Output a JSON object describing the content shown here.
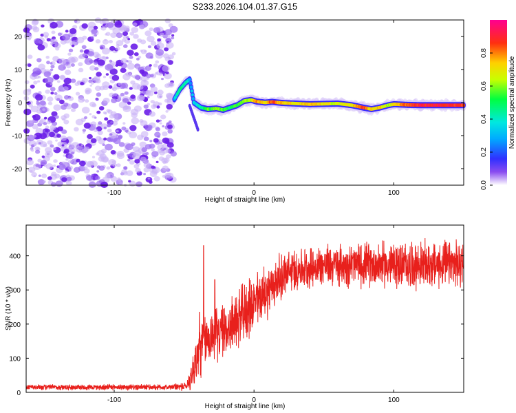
{
  "title": "S233.2026.104.01.37.G15",
  "colors": {
    "trace": "#e8201c",
    "scatter": "#7a3cf0",
    "background": "#ffffff"
  },
  "chart_data": [
    {
      "type": "heatmap",
      "name": "spectrogram",
      "xlabel": "Height of straight line (km)",
      "ylabel": "Frequency (Hz)",
      "xlim": [
        -163,
        150
      ],
      "ylim": [
        -25,
        25
      ],
      "xticks": [
        -100,
        0,
        100
      ],
      "yticks": [
        -20,
        -10,
        0,
        10,
        20
      ],
      "noise_region_x": [
        -163,
        -57
      ],
      "ridge": [
        {
          "x": -57,
          "f": 1,
          "a": 0.3
        },
        {
          "x": -53,
          "f": 4,
          "a": 0.5
        },
        {
          "x": -49,
          "f": 6,
          "a": 0.45
        },
        {
          "x": -46,
          "f": 7,
          "a": 0.3
        },
        {
          "x": -43,
          "f": 0,
          "a": 0.35
        },
        {
          "x": -38,
          "f": -1.5,
          "a": 0.4
        },
        {
          "x": -33,
          "f": -2,
          "a": 0.55
        },
        {
          "x": -27,
          "f": -1.8,
          "a": 0.6
        },
        {
          "x": -22,
          "f": -2.2,
          "a": 0.55
        },
        {
          "x": -17,
          "f": -1.5,
          "a": 0.5
        },
        {
          "x": -12,
          "f": -0.8,
          "a": 0.55
        },
        {
          "x": -7,
          "f": 0.5,
          "a": 0.6
        },
        {
          "x": -2,
          "f": 0.8,
          "a": 0.65
        },
        {
          "x": 2,
          "f": 0.3,
          "a": 0.8
        },
        {
          "x": 8,
          "f": 0,
          "a": 0.7
        },
        {
          "x": 13,
          "f": 0.2,
          "a": 0.85
        },
        {
          "x": 20,
          "f": -0.1,
          "a": 0.75
        },
        {
          "x": 30,
          "f": -0.3,
          "a": 0.7
        },
        {
          "x": 40,
          "f": -0.5,
          "a": 0.75
        },
        {
          "x": 50,
          "f": -0.4,
          "a": 0.7
        },
        {
          "x": 60,
          "f": -0.3,
          "a": 0.65
        },
        {
          "x": 70,
          "f": -0.8,
          "a": 0.7
        },
        {
          "x": 78,
          "f": -1.5,
          "a": 0.85
        },
        {
          "x": 84,
          "f": -2,
          "a": 0.7
        },
        {
          "x": 90,
          "f": -1.5,
          "a": 0.75
        },
        {
          "x": 96,
          "f": -0.8,
          "a": 0.6
        },
        {
          "x": 100,
          "f": -0.5,
          "a": 0.7
        },
        {
          "x": 110,
          "f": -0.7,
          "a": 0.85
        },
        {
          "x": 120,
          "f": -0.8,
          "a": 0.9
        },
        {
          "x": 130,
          "f": -0.8,
          "a": 0.9
        },
        {
          "x": 140,
          "f": -0.8,
          "a": 0.9
        },
        {
          "x": 150,
          "f": -0.8,
          "a": 0.85
        }
      ],
      "colorbar": {
        "label": "Normalized spectral amplitude",
        "range": [
          0,
          1
        ],
        "ticks": [
          "0.0",
          "0.2",
          "0.4",
          "0.6",
          "0.8"
        ],
        "tick_values": [
          0.0,
          0.2,
          0.4,
          0.6,
          0.8
        ]
      }
    },
    {
      "type": "line",
      "name": "snr",
      "xlabel": "Height of straight line (km)",
      "ylabel": "SNR (10 * v/v)",
      "xlim": [
        -163,
        150
      ],
      "ylim": [
        0,
        490
      ],
      "xticks": [
        -100,
        0,
        100
      ],
      "yticks": [
        0,
        100,
        200,
        300,
        400
      ],
      "envelope": [
        {
          "x": -163,
          "mean": 15,
          "noise": 10
        },
        {
          "x": -60,
          "mean": 15,
          "noise": 10
        },
        {
          "x": -48,
          "mean": 18,
          "noise": 15
        },
        {
          "x": -44,
          "mean": 60,
          "noise": 60
        },
        {
          "x": -40,
          "mean": 110,
          "noise": 110
        },
        {
          "x": -36,
          "mean": 150,
          "noise": 90
        },
        {
          "x": -30,
          "mean": 165,
          "noise": 90
        },
        {
          "x": -20,
          "mean": 185,
          "noise": 90
        },
        {
          "x": -10,
          "mean": 220,
          "noise": 100
        },
        {
          "x": 0,
          "mean": 260,
          "noise": 100
        },
        {
          "x": 10,
          "mean": 300,
          "noise": 90
        },
        {
          "x": 20,
          "mean": 340,
          "noise": 80
        },
        {
          "x": 30,
          "mean": 360,
          "noise": 70
        },
        {
          "x": 50,
          "mean": 372,
          "noise": 70
        },
        {
          "x": 80,
          "mean": 375,
          "noise": 75
        },
        {
          "x": 110,
          "mean": 372,
          "noise": 80
        },
        {
          "x": 150,
          "mean": 375,
          "noise": 80
        }
      ],
      "spikes": [
        {
          "x": -36,
          "value": 430
        },
        {
          "x": -39,
          "value": 235
        },
        {
          "x": -28,
          "value": 330
        }
      ]
    }
  ]
}
